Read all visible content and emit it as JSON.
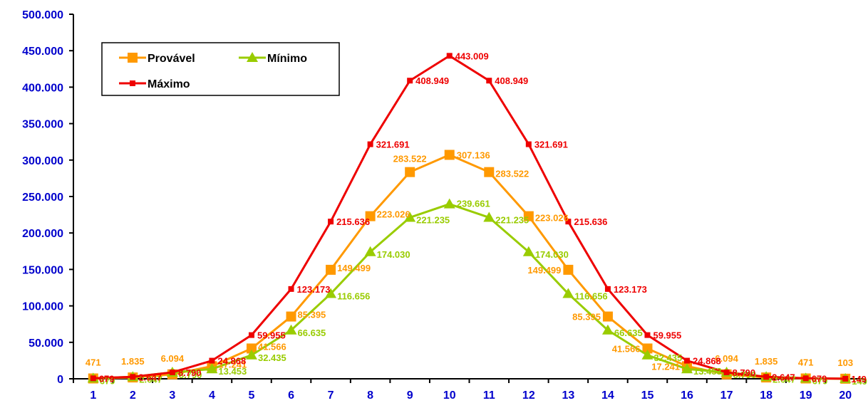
{
  "chart_data": {
    "type": "line",
    "title": "",
    "xlabel": "",
    "ylabel": "",
    "categories": [
      "1",
      "2",
      "3",
      "4",
      "5",
      "6",
      "7",
      "8",
      "9",
      "10",
      "11",
      "12",
      "13",
      "14",
      "15",
      "16",
      "17",
      "18",
      "19",
      "20"
    ],
    "y_tick_labels": [
      "0",
      "50.000",
      "100.000",
      "150.000",
      "200.000",
      "250.000",
      "300.000",
      "350.000",
      "400.000",
      "450.000",
      "500.000"
    ],
    "ylim": [
      0,
      500000
    ],
    "grid": false,
    "legend_position": "top-left",
    "series": [
      {
        "name": "Provável",
        "color": "#ff9900",
        "marker": "square",
        "values": [
          471,
          1835,
          6094,
          17241,
          41566,
          85395,
          149499,
          223026,
          283522,
          307136,
          283522,
          223026,
          149499,
          85395,
          41566,
          17241,
          6094,
          1835,
          471,
          103
        ],
        "labels": [
          "471",
          "1.835",
          "6.094",
          "17.241",
          "41.566",
          "85.395",
          "149.499",
          "223.026",
          "283.522",
          "307.136",
          "283.522",
          "223.026",
          "149.499",
          "85.395",
          "41.566",
          "17.241",
          "6.094",
          "1.835",
          "471",
          "103"
        ]
      },
      {
        "name": "Mínimo",
        "color": "#99cc00",
        "marker": "triangle",
        "values": [
          679,
          2647,
          8790,
          13453,
          32435,
          66635,
          116656,
          174030,
          221235,
          239661,
          221235,
          174030,
          116656,
          66635,
          32435,
          13453,
          8790,
          2647,
          679,
          149
        ],
        "labels": [
          "679",
          "2.647",
          "8.790",
          "13.453",
          "32.435",
          "66.635",
          "116.656",
          "174.030",
          "221.235",
          "239.661",
          "221.235",
          "174.030",
          "116.656",
          "66.635",
          "32.435",
          "13.453",
          "8.790",
          "2.647",
          "679",
          "149"
        ]
      },
      {
        "name": "Máximo",
        "color": "#ee0000",
        "marker": "small-square",
        "values": [
          679,
          2647,
          8790,
          24868,
          59955,
          123173,
          215636,
          321691,
          408949,
          443009,
          408949,
          321691,
          215636,
          123173,
          59955,
          24868,
          8790,
          2647,
          679,
          149
        ],
        "labels": [
          "679",
          "2.647",
          "8.790",
          "24.868",
          "59.955",
          "123.173",
          "215.636",
          "321.691",
          "408.949",
          "443.009",
          "408.949",
          "321.691",
          "215.636",
          "123.173",
          "59.955",
          "24.868",
          "8.790",
          "2.647",
          "679",
          "149"
        ]
      }
    ]
  }
}
